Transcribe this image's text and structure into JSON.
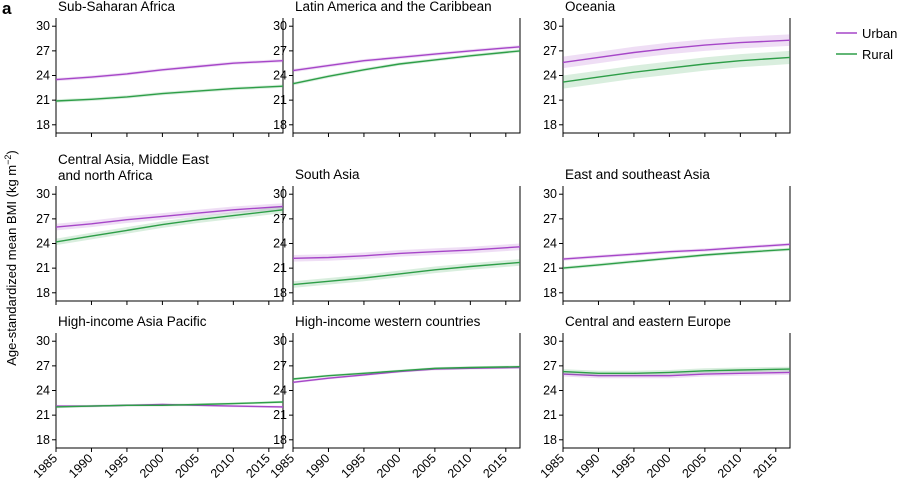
{
  "figure": {
    "panel_letter": "a",
    "ylabel_main": "Age-standardized mean BMI (kg m",
    "ylabel_exp": "−2",
    "ylabel_close": ")"
  },
  "legend": [
    {
      "label": "Urban",
      "color": "#a646c8"
    },
    {
      "label": "Rural",
      "color": "#2e9e48"
    }
  ],
  "chart_data": {
    "type": "line",
    "x_ticks": [
      1985,
      1990,
      1995,
      2000,
      2005,
      2010,
      2015
    ],
    "y_ticks": [
      18,
      21,
      24,
      27,
      30
    ],
    "xlim": [
      1985,
      2017
    ],
    "ylim": [
      17,
      31
    ],
    "grid": false,
    "legend_placement": "top-right",
    "panels": [
      {
        "title": [
          "Sub-Saharan Africa"
        ],
        "series": [
          {
            "name": "Urban",
            "color": "#a646c8",
            "x": [
              1985,
              1990,
              1995,
              2000,
              2005,
              2010,
              2017
            ],
            "y": [
              23.5,
              23.8,
              24.2,
              24.7,
              25.1,
              25.5,
              25.8
            ],
            "band": 0.2
          },
          {
            "name": "Rural",
            "color": "#2e9e48",
            "x": [
              1985,
              1990,
              1995,
              2000,
              2005,
              2010,
              2017
            ],
            "y": [
              20.9,
              21.1,
              21.4,
              21.8,
              22.1,
              22.4,
              22.7
            ],
            "band": 0.2
          }
        ]
      },
      {
        "title": [
          "Latin America and the Caribbean"
        ],
        "series": [
          {
            "name": "Urban",
            "color": "#a646c8",
            "x": [
              1985,
              1990,
              1995,
              2000,
              2005,
              2010,
              2017
            ],
            "y": [
              24.6,
              25.2,
              25.8,
              26.2,
              26.6,
              27.0,
              27.5
            ],
            "band": 0.2
          },
          {
            "name": "Rural",
            "color": "#2e9e48",
            "x": [
              1985,
              1990,
              1995,
              2000,
              2005,
              2010,
              2017
            ],
            "y": [
              23.0,
              23.9,
              24.7,
              25.4,
              25.9,
              26.4,
              27.0
            ],
            "band": 0.2
          }
        ]
      },
      {
        "title": [
          "Oceania"
        ],
        "series": [
          {
            "name": "Urban",
            "color": "#a646c8",
            "x": [
              1985,
              1990,
              1995,
              2000,
              2005,
              2010,
              2017
            ],
            "y": [
              25.6,
              26.2,
              26.8,
              27.3,
              27.7,
              28.0,
              28.3
            ],
            "band": 0.7
          },
          {
            "name": "Rural",
            "color": "#2e9e48",
            "x": [
              1985,
              1990,
              1995,
              2000,
              2005,
              2010,
              2017
            ],
            "y": [
              23.2,
              23.8,
              24.4,
              24.9,
              25.4,
              25.8,
              26.2
            ],
            "band": 0.8
          }
        ]
      },
      {
        "title": [
          "Central Asia, Middle East",
          "and north Africa"
        ],
        "series": [
          {
            "name": "Urban",
            "color": "#a646c8",
            "x": [
              1985,
              1990,
              1995,
              2000,
              2005,
              2010,
              2017
            ],
            "y": [
              26.0,
              26.4,
              26.9,
              27.3,
              27.7,
              28.1,
              28.5
            ],
            "band": 0.4
          },
          {
            "name": "Rural",
            "color": "#2e9e48",
            "x": [
              1985,
              1990,
              1995,
              2000,
              2005,
              2010,
              2017
            ],
            "y": [
              24.2,
              24.9,
              25.6,
              26.3,
              26.9,
              27.4,
              28.1
            ],
            "band": 0.4
          }
        ]
      },
      {
        "title": [
          "South Asia"
        ],
        "series": [
          {
            "name": "Urban",
            "color": "#a646c8",
            "x": [
              1985,
              1990,
              1995,
              2000,
              2005,
              2010,
              2017
            ],
            "y": [
              22.2,
              22.3,
              22.5,
              22.8,
              23.0,
              23.2,
              23.6
            ],
            "band": 0.4
          },
          {
            "name": "Rural",
            "color": "#2e9e48",
            "x": [
              1985,
              1990,
              1995,
              2000,
              2005,
              2010,
              2017
            ],
            "y": [
              19.0,
              19.4,
              19.8,
              20.3,
              20.8,
              21.2,
              21.7
            ],
            "band": 0.4
          }
        ]
      },
      {
        "title": [
          "East and southeast Asia"
        ],
        "series": [
          {
            "name": "Urban",
            "color": "#a646c8",
            "x": [
              1985,
              1990,
              1995,
              2000,
              2005,
              2010,
              2017
            ],
            "y": [
              22.1,
              22.4,
              22.7,
              23.0,
              23.2,
              23.5,
              23.9
            ],
            "band": 0.2
          },
          {
            "name": "Rural",
            "color": "#2e9e48",
            "x": [
              1985,
              1990,
              1995,
              2000,
              2005,
              2010,
              2017
            ],
            "y": [
              21.0,
              21.4,
              21.8,
              22.2,
              22.6,
              22.9,
              23.3
            ],
            "band": 0.2
          }
        ]
      },
      {
        "title": [
          "High-income Asia Pacific"
        ],
        "series": [
          {
            "name": "Urban",
            "color": "#a646c8",
            "x": [
              1985,
              1990,
              1995,
              2000,
              2005,
              2010,
              2017
            ],
            "y": [
              22.1,
              22.1,
              22.2,
              22.3,
              22.2,
              22.1,
              22.0
            ],
            "band": 0.15
          },
          {
            "name": "Rural",
            "color": "#2e9e48",
            "x": [
              1985,
              1990,
              1995,
              2000,
              2005,
              2010,
              2017
            ],
            "y": [
              22.0,
              22.1,
              22.2,
              22.2,
              22.3,
              22.4,
              22.6
            ],
            "band": 0.15
          }
        ]
      },
      {
        "title": [
          "High-income western countries"
        ],
        "series": [
          {
            "name": "Urban",
            "color": "#a646c8",
            "x": [
              1985,
              1990,
              1995,
              2000,
              2005,
              2010,
              2017
            ],
            "y": [
              25.0,
              25.5,
              25.9,
              26.3,
              26.6,
              26.7,
              26.8
            ],
            "band": 0.15
          },
          {
            "name": "Rural",
            "color": "#2e9e48",
            "x": [
              1985,
              1990,
              1995,
              2000,
              2005,
              2010,
              2017
            ],
            "y": [
              25.4,
              25.8,
              26.1,
              26.4,
              26.7,
              26.8,
              26.9
            ],
            "band": 0.15
          }
        ]
      },
      {
        "title": [
          "Central and eastern Europe"
        ],
        "series": [
          {
            "name": "Urban",
            "color": "#a646c8",
            "x": [
              1985,
              1990,
              1995,
              2000,
              2005,
              2010,
              2017
            ],
            "y": [
              26.0,
              25.8,
              25.8,
              25.8,
              26.0,
              26.1,
              26.2
            ],
            "band": 0.3
          },
          {
            "name": "Rural",
            "color": "#2e9e48",
            "x": [
              1985,
              1990,
              1995,
              2000,
              2005,
              2010,
              2017
            ],
            "y": [
              26.3,
              26.1,
              26.1,
              26.2,
              26.4,
              26.5,
              26.6
            ],
            "band": 0.3
          }
        ]
      }
    ]
  }
}
